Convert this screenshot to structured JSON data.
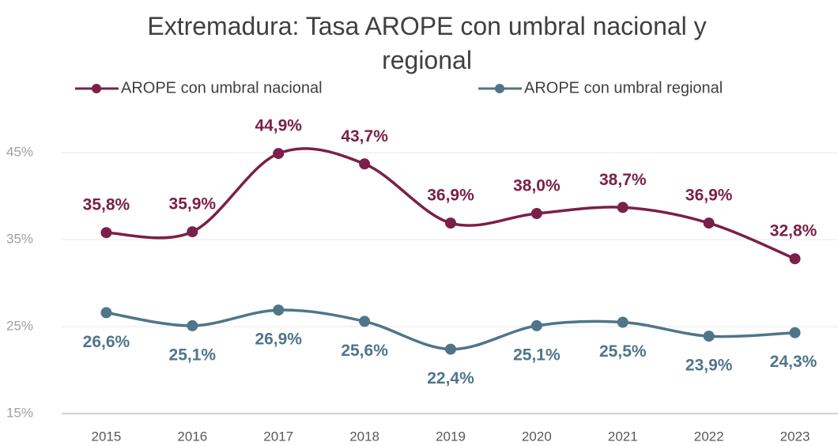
{
  "chart_data": {
    "type": "line",
    "title": "Extremadura: Tasa AROPE con umbral nacional y regional",
    "categories": [
      "2015",
      "2016",
      "2017",
      "2018",
      "2019",
      "2020",
      "2021",
      "2022",
      "2023"
    ],
    "series": [
      {
        "name": "AROPE con umbral nacional",
        "color": "#7b2048",
        "values": [
          35.8,
          35.9,
          44.9,
          43.7,
          36.9,
          38.0,
          38.7,
          36.9,
          32.8
        ],
        "value_labels": [
          "35,8%",
          "35,9%",
          "44,9%",
          "43,7%",
          "36,9%",
          "38,0%",
          "38,7%",
          "36,9%",
          "32,8%"
        ]
      },
      {
        "name": "AROPE con umbral regional",
        "color": "#507589",
        "values": [
          26.6,
          25.1,
          26.9,
          25.6,
          22.4,
          25.1,
          25.5,
          23.9,
          24.3
        ],
        "value_labels": [
          "26,6%",
          "25,1%",
          "26,9%",
          "25,6%",
          "22,4%",
          "25,1%",
          "25,5%",
          "23,9%",
          "24,3%"
        ]
      }
    ],
    "ylim": [
      15,
      45
    ],
    "yticks": [
      {
        "value": 15,
        "label": "15%"
      },
      {
        "value": 25,
        "label": "25%"
      },
      {
        "value": 35,
        "label": "35%"
      },
      {
        "value": 45,
        "label": "45%"
      }
    ],
    "grid": true,
    "smooth": true,
    "legend": "top"
  }
}
